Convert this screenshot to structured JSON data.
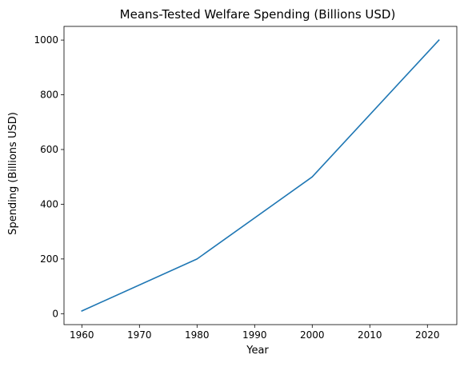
{
  "chart_data": {
    "type": "line",
    "title": "Means-Tested Welfare Spending (Billions USD)",
    "xlabel": "Year",
    "ylabel": "Spending (Billions USD)",
    "xlim": [
      1956.9,
      2025.1
    ],
    "ylim": [
      -40,
      1050
    ],
    "xticks": [
      1960,
      1970,
      1980,
      1990,
      2000,
      2010,
      2020
    ],
    "yticks": [
      0,
      200,
      400,
      600,
      800,
      1000
    ],
    "grid": false,
    "series": [
      {
        "color": "#1f77b4",
        "x": [
          1960,
          1980,
          2000,
          2022
        ],
        "y": [
          10,
          200,
          500,
          1000
        ]
      }
    ]
  }
}
